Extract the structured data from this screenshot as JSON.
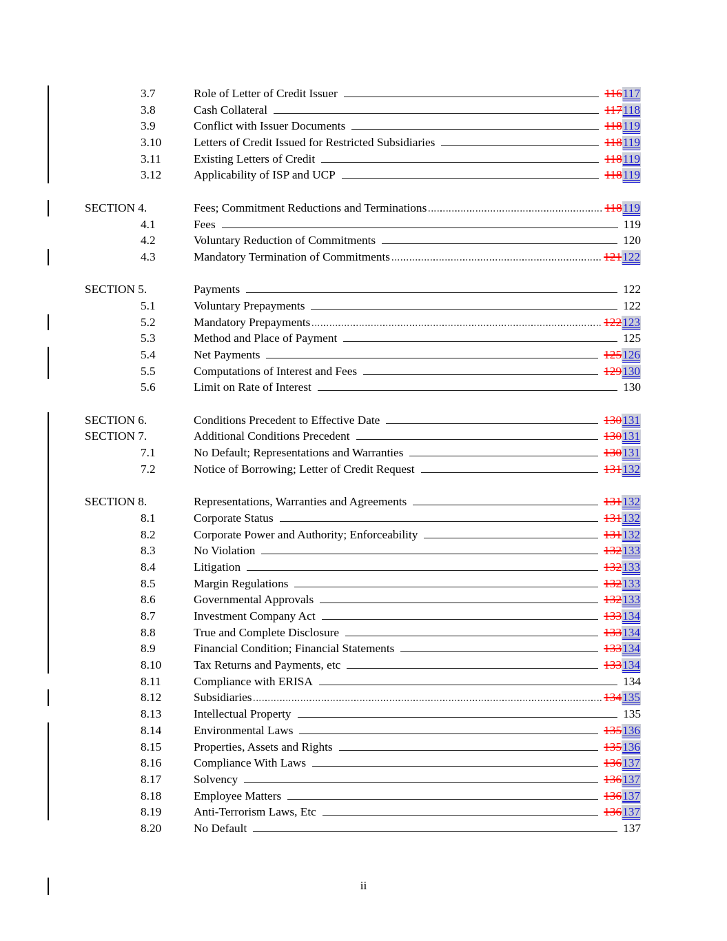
{
  "colors": {
    "deleted_text": "#ff0000",
    "inserted_text": "#1414d2",
    "inserted_highlight": "#cdcfd8",
    "change_bar": "#000000"
  },
  "footer": {
    "page_number": "ii"
  },
  "toc": {
    "rows": [
      {
        "type": "entry",
        "num": "3.7",
        "title": "Role of Letter of Credit Issuer",
        "leader": "solid",
        "old": "116",
        "new": "117",
        "bar": true
      },
      {
        "type": "entry",
        "num": "3.8",
        "title": "Cash Collateral",
        "leader": "solid",
        "old": "117",
        "new": "118",
        "bar": true
      },
      {
        "type": "entry",
        "num": "3.9",
        "title": "Conflict with Issuer Documents",
        "leader": "solid",
        "old": "118",
        "new": "119",
        "bar": true
      },
      {
        "type": "entry",
        "num": "3.10",
        "title": "Letters of Credit Issued for Restricted Subsidiaries",
        "leader": "solid",
        "old": "118",
        "new": "119",
        "bar": true
      },
      {
        "type": "entry",
        "num": "3.11",
        "title": "Existing Letters of Credit",
        "leader": "solid",
        "old": "118",
        "new": "119",
        "bar": true
      },
      {
        "type": "entry",
        "num": "3.12",
        "title": "Applicability of ISP and UCP",
        "leader": "solid",
        "old": "118",
        "new": "119",
        "bar": true
      },
      {
        "type": "spacer",
        "bar": false
      },
      {
        "type": "entry",
        "num": "SECTION 4.",
        "section": true,
        "title": "Fees; Commitment Reductions and Terminations",
        "leader": "dotted",
        "old": "118",
        "new": "119",
        "bar": true
      },
      {
        "type": "entry",
        "num": "4.1",
        "title": "Fees",
        "leader": "solid",
        "page": "119",
        "bar": false
      },
      {
        "type": "entry",
        "num": "4.2",
        "title": "Voluntary Reduction of Commitments",
        "leader": "solid",
        "page": "120",
        "bar": false
      },
      {
        "type": "entry",
        "num": "4.3",
        "title": "Mandatory Termination of Commitments",
        "leader": "dotted",
        "old": "121",
        "new": "122",
        "bar": true
      },
      {
        "type": "spacer",
        "bar": false
      },
      {
        "type": "entry",
        "num": "SECTION 5.",
        "section": true,
        "title": "Payments",
        "leader": "solid",
        "page": "122",
        "bar": false
      },
      {
        "type": "entry",
        "num": "5.1",
        "title": "Voluntary Prepayments",
        "leader": "solid",
        "page": "122",
        "bar": false
      },
      {
        "type": "entry",
        "num": "5.2",
        "title": "Mandatory Prepayments",
        "leader": "dotted",
        "old": "122",
        "new": "123",
        "bar": true
      },
      {
        "type": "entry",
        "num": "5.3",
        "title": "Method and Place of Payment",
        "leader": "solid",
        "page": "125",
        "bar": false
      },
      {
        "type": "entry",
        "num": "5.4",
        "title": "Net Payments",
        "leader": "solid",
        "old": "125",
        "new": "126",
        "bar": true
      },
      {
        "type": "entry",
        "num": "5.5",
        "title": "Computations of Interest and Fees",
        "leader": "solid",
        "old": "129",
        "new": "130",
        "bar": true
      },
      {
        "type": "entry",
        "num": "5.6",
        "title": "Limit on Rate of Interest",
        "leader": "solid",
        "page": "130",
        "bar": false
      },
      {
        "type": "spacer",
        "bar": false
      },
      {
        "type": "entry",
        "num": "SECTION 6.",
        "section": true,
        "title": "Conditions Precedent to Effective Date",
        "leader": "solid",
        "old": "130",
        "new": "131",
        "bar": true
      },
      {
        "type": "entry",
        "num": "SECTION 7.",
        "section": true,
        "title": "Additional Conditions Precedent",
        "leader": "solid",
        "old": "130",
        "new": "131",
        "bar": true
      },
      {
        "type": "entry",
        "num": "7.1",
        "title": "No Default; Representations and Warranties",
        "leader": "solid",
        "old": "130",
        "new": "131",
        "bar": true
      },
      {
        "type": "entry",
        "num": "7.2",
        "title": "Notice of Borrowing; Letter of Credit Request",
        "leader": "solid",
        "old": "131",
        "new": "132",
        "bar": true
      },
      {
        "type": "spacer",
        "bar": true
      },
      {
        "type": "entry",
        "num": "SECTION 8.",
        "section": true,
        "title": "Representations, Warranties and Agreements",
        "leader": "solid",
        "old": "131",
        "new": "132",
        "bar": true
      },
      {
        "type": "entry",
        "num": "8.1",
        "title": "Corporate Status",
        "leader": "solid",
        "old": "131",
        "new": "132",
        "bar": true
      },
      {
        "type": "entry",
        "num": "8.2",
        "title": "Corporate Power and Authority; Enforceability",
        "leader": "solid",
        "old": "131",
        "new": "132",
        "bar": true
      },
      {
        "type": "entry",
        "num": "8.3",
        "title": "No Violation",
        "leader": "solid",
        "old": "132",
        "new": "133",
        "bar": true
      },
      {
        "type": "entry",
        "num": "8.4",
        "title": "Litigation",
        "leader": "solid",
        "old": "132",
        "new": "133",
        "bar": true
      },
      {
        "type": "entry",
        "num": "8.5",
        "title": "Margin Regulations",
        "leader": "solid",
        "old": "132",
        "new": "133",
        "bar": true
      },
      {
        "type": "entry",
        "num": "8.6",
        "title": "Governmental Approvals",
        "leader": "solid",
        "old": "132",
        "new": "133",
        "bar": true
      },
      {
        "type": "entry",
        "num": "8.7",
        "title": "Investment Company Act",
        "leader": "solid",
        "old": "133",
        "new": "134",
        "bar": true
      },
      {
        "type": "entry",
        "num": "8.8",
        "title": "True and Complete Disclosure",
        "leader": "solid",
        "old": "133",
        "new": "134",
        "bar": true
      },
      {
        "type": "entry",
        "num": "8.9",
        "title": "Financial Condition; Financial Statements",
        "leader": "solid",
        "old": "133",
        "new": "134",
        "bar": true
      },
      {
        "type": "entry",
        "num": "8.10",
        "title": "Tax Returns and Payments, etc",
        "leader": "solid",
        "old": "133",
        "new": "134",
        "bar": true
      },
      {
        "type": "entry",
        "num": "8.11",
        "title": "Compliance with ERISA",
        "leader": "solid",
        "page": "134",
        "bar": false
      },
      {
        "type": "entry",
        "num": "8.12",
        "title": "Subsidiaries",
        "leader": "dotted",
        "old": "134",
        "new": "135",
        "bar": true
      },
      {
        "type": "entry",
        "num": "8.13",
        "title": "Intellectual Property",
        "leader": "solid",
        "page": "135",
        "bar": false
      },
      {
        "type": "entry",
        "num": "8.14",
        "title": "Environmental Laws",
        "leader": "solid",
        "old": "135",
        "new": "136",
        "bar": true
      },
      {
        "type": "entry",
        "num": "8.15",
        "title": "Properties, Assets and Rights",
        "leader": "solid",
        "old": "135",
        "new": "136",
        "bar": true
      },
      {
        "type": "entry",
        "num": "8.16",
        "title": "Compliance With Laws",
        "leader": "solid",
        "old": "136",
        "new": "137",
        "bar": true
      },
      {
        "type": "entry",
        "num": "8.17",
        "title": "Solvency",
        "leader": "solid",
        "old": "136",
        "new": "137",
        "bar": true
      },
      {
        "type": "entry",
        "num": "8.18",
        "title": "Employee Matters",
        "leader": "solid",
        "old": "136",
        "new": "137",
        "bar": true
      },
      {
        "type": "entry",
        "num": "8.19",
        "title": "Anti-Terrorism Laws, Etc",
        "leader": "solid",
        "old": "136",
        "new": "137",
        "bar": true
      },
      {
        "type": "entry",
        "num": "8.20",
        "title": "No Default",
        "leader": "solid",
        "page": "137",
        "bar": false
      }
    ]
  }
}
